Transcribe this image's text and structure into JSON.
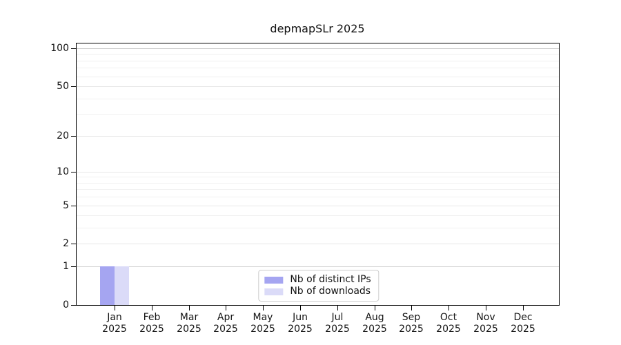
{
  "chart_data": {
    "type": "bar",
    "title": "depmapSLr 2025",
    "categories": [
      "Jan",
      "Feb",
      "Mar",
      "Apr",
      "May",
      "Jun",
      "Jul",
      "Aug",
      "Sep",
      "Oct",
      "Nov",
      "Dec"
    ],
    "category_year": "2025",
    "series": [
      {
        "name": "Nb of distinct IPs",
        "color": "#a5a5f1",
        "values": [
          1,
          0,
          0,
          0,
          0,
          0,
          0,
          0,
          0,
          0,
          0,
          0
        ]
      },
      {
        "name": "Nb of downloads",
        "color": "#dbdbf8",
        "values": [
          1,
          0,
          0,
          0,
          0,
          0,
          0,
          0,
          0,
          0,
          0,
          0
        ]
      }
    ],
    "y_axis": {
      "scale": "log1p",
      "ticks": [
        0,
        1,
        2,
        5,
        10,
        20,
        50,
        100
      ],
      "minor_ticks": [
        3,
        4,
        6,
        7,
        8,
        9,
        30,
        40,
        60,
        70,
        80,
        90
      ],
      "range_max": 110
    },
    "legend": {
      "position": "lower-center"
    },
    "grid": true,
    "colors": {
      "spine": "#000000",
      "grid_minor": "#f0f0f0",
      "grid_major": "#e7e7e7",
      "grid_unit": "#d4d4d4",
      "grid_top": "#c9c9c9",
      "legend_border": "#cccccc"
    }
  }
}
